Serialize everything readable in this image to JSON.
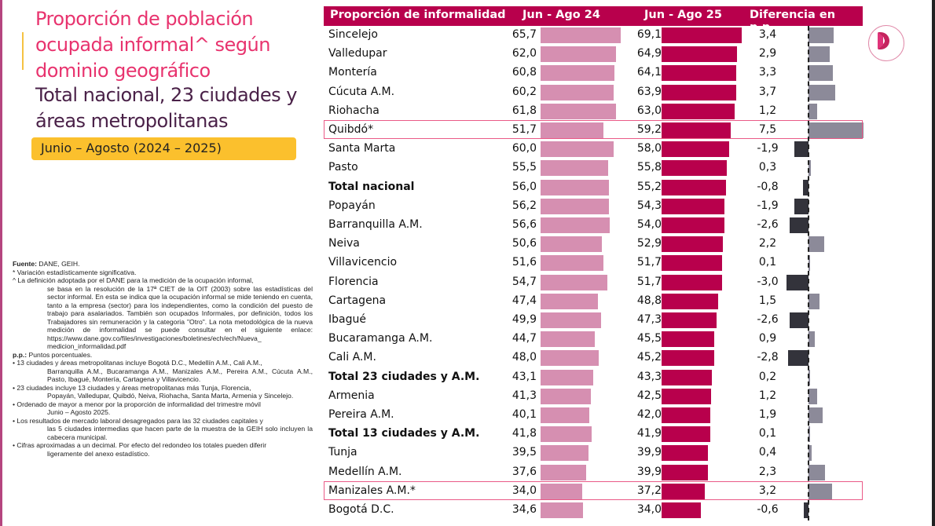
{
  "title": {
    "main": "Proporción de población ocupada informal^ según dominio geográfico",
    "sub": "Total nacional, 23 ciudades y áreas metropolitanas",
    "period": "Junio – Agosto (2024 – 2025)"
  },
  "colors": {
    "header_bg": "#b8004c",
    "bar_2024": "#d68fb1",
    "bar_2025": "#b8004c",
    "diff_positive": "#8c8a99",
    "diff_negative": "#33333b",
    "highlight_border": "#ea5a87",
    "title_pink": "#e8336e",
    "title_dark": "#4a2148",
    "period_bg": "#fbc02d"
  },
  "logo": {
    "icon": "dane-d-logo-icon"
  },
  "notes": {
    "fuente_label": "Fuente:",
    "fuente_text": " DANE, GEIH.",
    "asterisk": "* Variación estadísticamente significativa.",
    "caret_first": "^ La definición adoptada por el DANE para la medición de la ocupación informal,",
    "caret_rest": "se basa en la resolución de la 17ª CIET de la OIT (2003) sobre las estadísticas del sector informal. En esta se indica que la ocupación informal se mide teniendo en cuenta, tanto a la empresa (sector) para los independientes, como la condición del puesto de trabajo para asalariados. También son ocupados Informales, por definición, todos los Trabajadores sin remuneración y la categoria \"Otro\". La nota metodológica de la nueva medición de informalidad se puede consultar en el siguiente enlace: https://www.dane.gov.co/files/investigaciones/boletines/ech/ech/Nueva_ medicion_informalidad.pdf",
    "pp_label": "p.p.:",
    "pp_text": " Puntos porcentuales.",
    "b13_first": "• 13 ciudades y áreas metropolitanas incluye Bogotá D.C., Medellín A.M., Cali A.M.,",
    "b13_rest": "Barranquilla A.M., Bucaramanga A.M., Manizales A.M., Pereira A.M., Cúcuta A.M., Pasto, Ibagué, Montería, Cartagena y Villavicencio.",
    "b23_first": "• 23 ciudades incluye 13 ciudades y áreas metropolitanas más Tunja, Florencia,",
    "b23_rest": "Popayán, Valledupar, Quibdó, Neiva, Riohacha, Santa Marta, Armenia y Sincelejo.",
    "order_first": "• Ordenado de mayor a menor por la proporción de informalidad del trimestre móvil",
    "order_rest": "Junio – Agosto 2025.",
    "results_first": "• Los resultados de mercado laboral desagregados para las 32 ciudades capitales y",
    "results_rest": "las 5 ciudades intermedias que hacen parte de la muestra de la GEIH solo incluyen la cabecera municipal.",
    "round_first": "• Cifras aproximadas a un decimal. Por efecto del redondeo los totales pueden diferir",
    "round_rest": "ligeramente del anexo estadístico."
  },
  "chart_data": {
    "type": "table",
    "title": "Proporción de población ocupada informal^ según dominio geográfico",
    "subtitle": "Total nacional, 23 ciudades y áreas metropolitanas — Junio – Agosto (2024 – 2025)",
    "columns": [
      "Proporción de informalidad",
      "Jun - Ago 24",
      "Jun - Ago 25",
      "Diferencia en p.p."
    ],
    "rows": [
      {
        "name": "Sincelejo",
        "v24": "65,7",
        "v25": "69,1",
        "diff": "3,4",
        "bold": false,
        "highlight": false
      },
      {
        "name": "Valledupar",
        "v24": "62,0",
        "v25": "64,9",
        "diff": "2,9",
        "bold": false,
        "highlight": false
      },
      {
        "name": "Montería",
        "v24": "60,8",
        "v25": "64,1",
        "diff": "3,3",
        "bold": false,
        "highlight": false
      },
      {
        "name": "Cúcuta A.M.",
        "v24": "60,2",
        "v25": "63,9",
        "diff": "3,7",
        "bold": false,
        "highlight": false
      },
      {
        "name": "Riohacha",
        "v24": "61,8",
        "v25": "63,0",
        "diff": "1,2",
        "bold": false,
        "highlight": false
      },
      {
        "name": "Quibdó*",
        "v24": "51,7",
        "v25": "59,2",
        "diff": "7,5",
        "bold": false,
        "highlight": true
      },
      {
        "name": "Santa Marta",
        "v24": "60,0",
        "v25": "58,0",
        "diff": "-1,9",
        "bold": false,
        "highlight": false
      },
      {
        "name": "Pasto",
        "v24": "55,5",
        "v25": "55,8",
        "diff": "0,3",
        "bold": false,
        "highlight": false
      },
      {
        "name": "Total nacional",
        "v24": "56,0",
        "v25": "55,2",
        "diff": "-0,8",
        "bold": true,
        "highlight": false
      },
      {
        "name": "Popayán",
        "v24": "56,2",
        "v25": "54,3",
        "diff": "-1,9",
        "bold": false,
        "highlight": false
      },
      {
        "name": "Barranquilla A.M.",
        "v24": "56,6",
        "v25": "54,0",
        "diff": "-2,6",
        "bold": false,
        "highlight": false
      },
      {
        "name": "Neiva",
        "v24": "50,6",
        "v25": "52,9",
        "diff": "2,2",
        "bold": false,
        "highlight": false
      },
      {
        "name": "Villavicencio",
        "v24": "51,6",
        "v25": "51,7",
        "diff": "0,1",
        "bold": false,
        "highlight": false
      },
      {
        "name": "Florencia",
        "v24": "54,7",
        "v25": "51,7",
        "diff": "-3,0",
        "bold": false,
        "highlight": false
      },
      {
        "name": "Cartagena",
        "v24": "47,4",
        "v25": "48,8",
        "diff": "1,5",
        "bold": false,
        "highlight": false
      },
      {
        "name": "Ibagué",
        "v24": "49,9",
        "v25": "47,3",
        "diff": "-2,6",
        "bold": false,
        "highlight": false
      },
      {
        "name": "Bucaramanga A.M.",
        "v24": "44,7",
        "v25": "45,5",
        "diff": "0,9",
        "bold": false,
        "highlight": false
      },
      {
        "name": "Cali A.M.",
        "v24": "48,0",
        "v25": "45,2",
        "diff": "-2,8",
        "bold": false,
        "highlight": false
      },
      {
        "name": "Total 23 ciudades y A.M.",
        "v24": "43,1",
        "v25": "43,3",
        "diff": "0,2",
        "bold": true,
        "highlight": false
      },
      {
        "name": "Armenia",
        "v24": "41,3",
        "v25": "42,5",
        "diff": "1,2",
        "bold": false,
        "highlight": false
      },
      {
        "name": "Pereira A.M.",
        "v24": "40,1",
        "v25": "42,0",
        "diff": "1,9",
        "bold": false,
        "highlight": false
      },
      {
        "name": "Total 13 ciudades y A.M.",
        "v24": "41,8",
        "v25": "41,9",
        "diff": "0,1",
        "bold": true,
        "highlight": false
      },
      {
        "name": "Tunja",
        "v24": "39,5",
        "v25": "39,9",
        "diff": "0,4",
        "bold": false,
        "highlight": false
      },
      {
        "name": "Medellín A.M.",
        "v24": "37,6",
        "v25": "39,9",
        "diff": "2,3",
        "bold": false,
        "highlight": false
      },
      {
        "name": "Manizales A.M.*",
        "v24": "34,0",
        "v25": "37,2",
        "diff": "3,2",
        "bold": false,
        "highlight": true
      },
      {
        "name": "Bogotá D.C.",
        "v24": "34,6",
        "v25": "34,0",
        "diff": "-0,6",
        "bold": false,
        "highlight": false
      }
    ]
  }
}
